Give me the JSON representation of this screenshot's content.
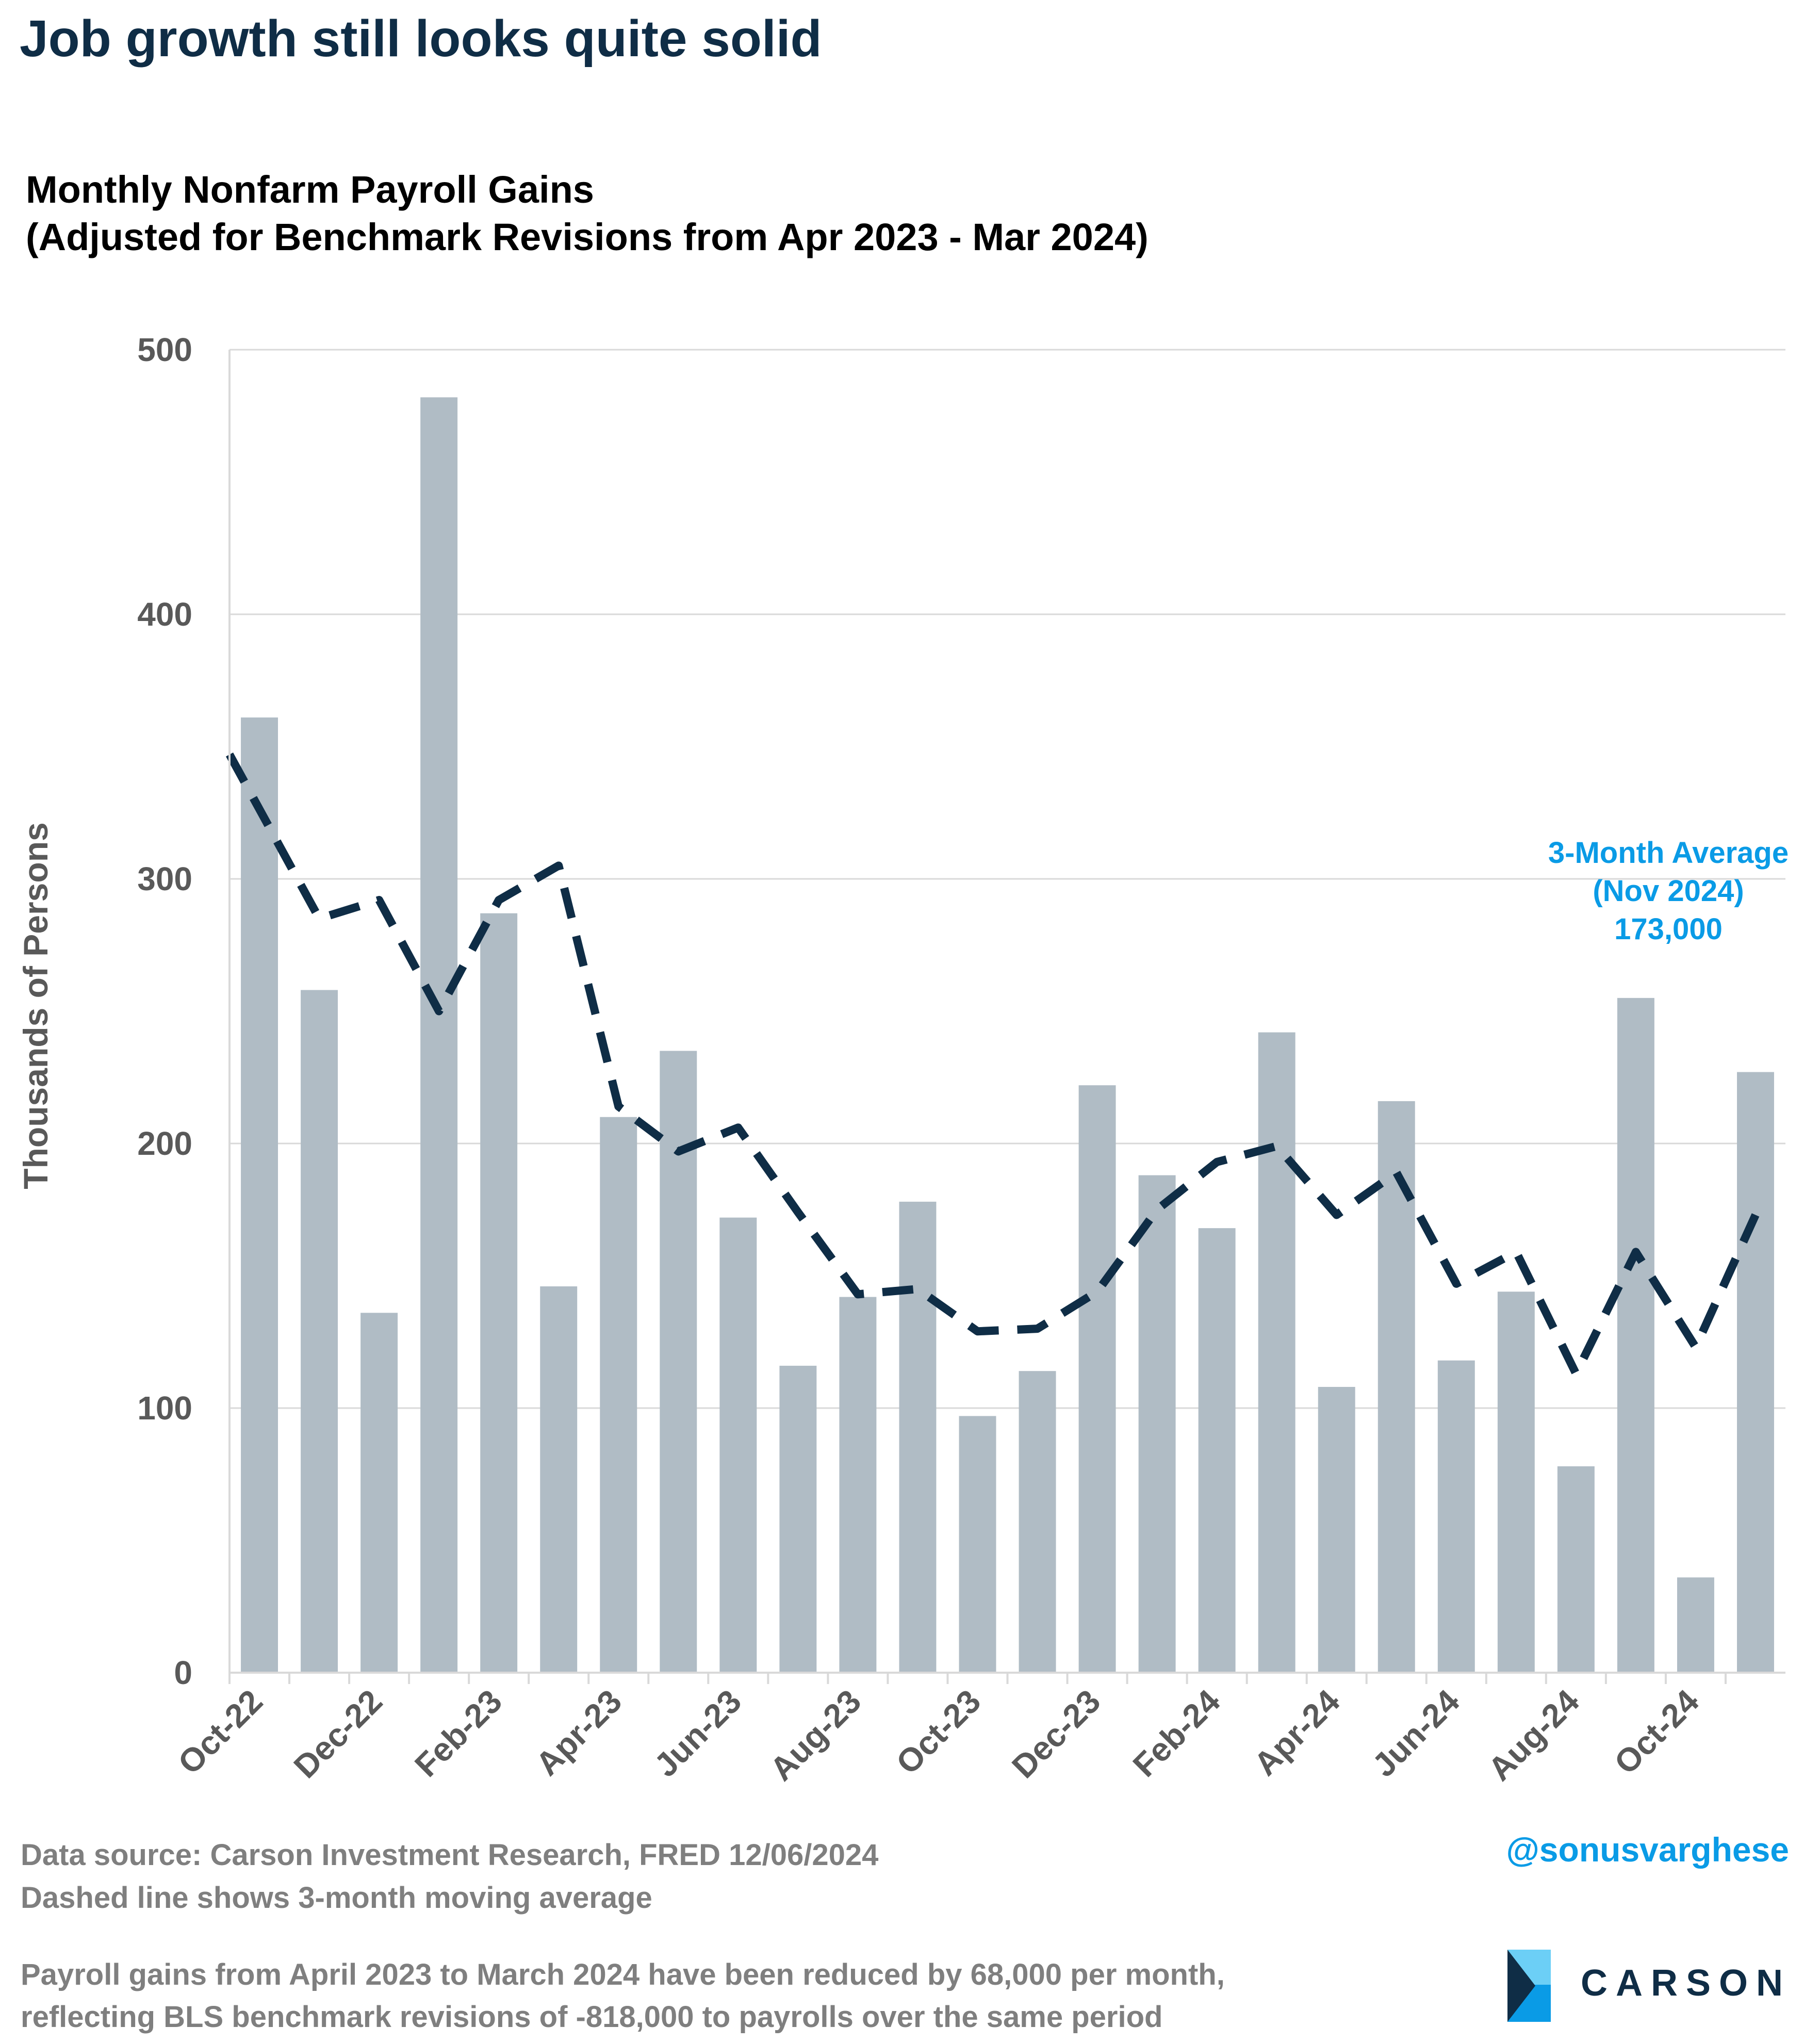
{
  "headline": "Job growth still looks quite solid",
  "chart_title_line1": "Monthly Nonfarm Payroll Gains",
  "chart_title_line2": "(Adjusted for Benchmark Revisions from Apr 2023 - Mar 2024)",
  "annotation": {
    "line1": "3-Month Average",
    "line2": "(Nov 2024)",
    "line3": "173,000"
  },
  "footer": {
    "source": "Data source: Carson Investment Research, FRED   12/06/2024",
    "note": "Dashed line shows 3-month moving average",
    "revision_line1": "Payroll gains from April 2023 to March 2024 have been reduced by 68,000 per month,",
    "revision_line2": "reflecting BLS benchmark revisions of -818,000 to payrolls over the same period"
  },
  "handle": "@sonusvarghese",
  "logo_text": "CARSON",
  "colors": {
    "bar": "#b0bcc5",
    "line": "#0f2d46",
    "annotation": "#0a9be6",
    "grid": "#d9d9d9",
    "axis_text": "#595959"
  },
  "chart_data": {
    "type": "bar",
    "title": "Monthly Nonfarm Payroll Gains (Adjusted for Benchmark Revisions from Apr 2023 - Mar 2024)",
    "ylabel": "Thousands of Persons",
    "xlabel": "",
    "ylim": [
      0,
      500
    ],
    "yticks": [
      0,
      100,
      200,
      300,
      400,
      500
    ],
    "grid": true,
    "categories": [
      "Oct-22",
      "Nov-22",
      "Dec-22",
      "Jan-23",
      "Feb-23",
      "Mar-23",
      "Apr-23",
      "May-23",
      "Jun-23",
      "Jul-23",
      "Aug-23",
      "Sep-23",
      "Oct-23",
      "Nov-23",
      "Dec-23",
      "Jan-24",
      "Feb-24",
      "Mar-24",
      "Apr-24",
      "May-24",
      "Jun-24",
      "Jul-24",
      "Aug-24",
      "Sep-24",
      "Oct-24",
      "Nov-24"
    ],
    "xtick_labels": [
      "Oct-22",
      "Dec-22",
      "Feb-23",
      "Apr-23",
      "Jun-23",
      "Aug-23",
      "Oct-23",
      "Dec-23",
      "Feb-24",
      "Apr-24",
      "Jun-24",
      "Aug-24",
      "Oct-24"
    ],
    "series": [
      {
        "type": "bar",
        "values": [
          361,
          258,
          136,
          482,
          287,
          146,
          210,
          235,
          172,
          116,
          142,
          178,
          97,
          114,
          222,
          188,
          168,
          242,
          108,
          216,
          118,
          144,
          78,
          255,
          36,
          227
        ]
      },
      {
        "type": "line",
        "style": "dashed",
        "values": [
          347,
          285,
          292,
          250,
          292,
          305,
          214,
          197,
          206,
          174,
          143,
          145,
          129,
          130,
          144,
          175,
          193,
          199,
          173,
          189,
          147,
          159,
          113,
          159,
          123,
          173
        ]
      }
    ]
  }
}
